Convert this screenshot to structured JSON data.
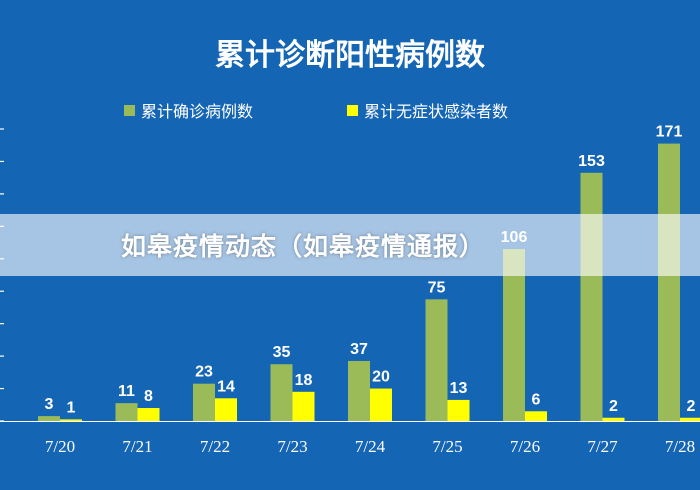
{
  "colors": {
    "background": "#1565b5",
    "confirmed": "#9bbb59",
    "asymptomatic": "#ffff00",
    "text": "#ffffff"
  },
  "overlay": {
    "caption": "如皋疫情动态（如皋疫情通报）"
  },
  "chart_data": {
    "type": "bar",
    "title": "累计诊断阳性病例数",
    "categories": [
      "7/20",
      "7/21",
      "7/22",
      "7/23",
      "7/24",
      "7/25",
      "7/26",
      "7/27",
      "7/28"
    ],
    "series": [
      {
        "name": "累计确诊病例数",
        "values": [
          3,
          11,
          23,
          35,
          37,
          75,
          106,
          153,
          171
        ]
      },
      {
        "name": "累计无症状感染者数",
        "values": [
          1,
          8,
          14,
          18,
          20,
          13,
          6,
          2,
          2
        ]
      }
    ],
    "ylim": [
      0,
      180
    ],
    "legend_position": "top",
    "grid": false,
    "data_labels": true
  }
}
